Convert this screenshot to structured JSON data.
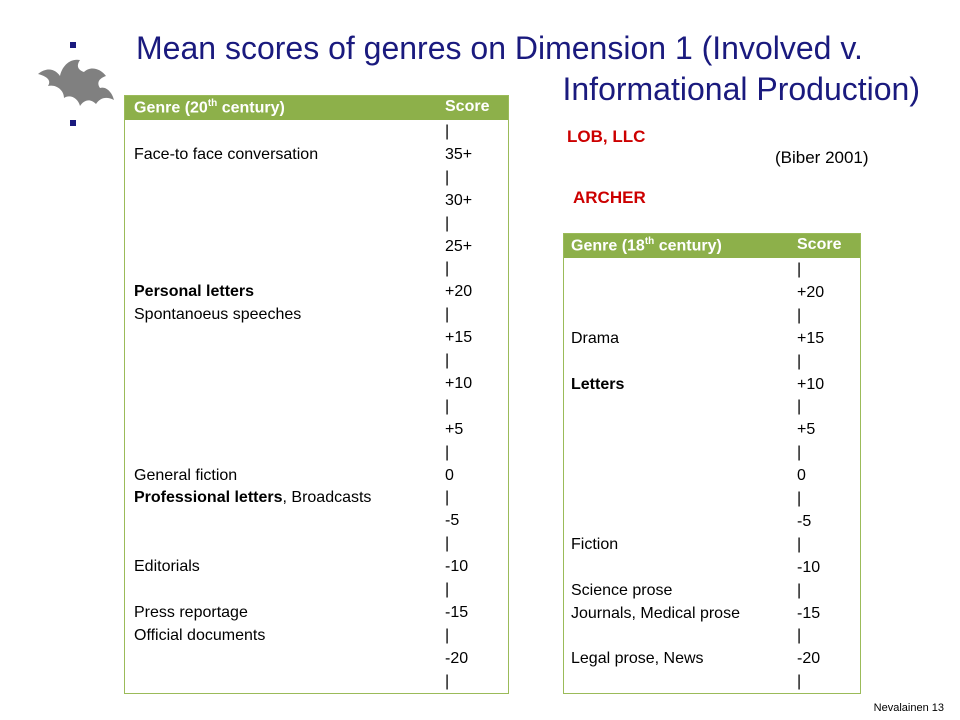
{
  "title": {
    "line1": "Mean scores of genres on Dimension 1 (Involved v.",
    "line2": "Informational Production)"
  },
  "labels": {
    "lob": "LOB, LLC",
    "archer": "ARCHER",
    "citation": "(Biber 2001)"
  },
  "table20": {
    "header_genre": "Genre (20",
    "header_sup": "th",
    "header_genre_end": " century)",
    "header_score": "Score",
    "rows": [
      {
        "genre": "",
        "score": "|"
      },
      {
        "genre": "Face-to face conversation",
        "score": "35+"
      },
      {
        "genre": "",
        "score": "|"
      },
      {
        "genre": "",
        "score": "30+"
      },
      {
        "genre": "",
        "score": "|"
      },
      {
        "genre": "",
        "score": "25+"
      },
      {
        "genre": "",
        "score": "|"
      },
      {
        "genre": "Personal letters",
        "bold": true,
        "score": "+20"
      },
      {
        "genre": "Spontanoeus speeches",
        "score": "|"
      },
      {
        "genre": "",
        "score": "+15"
      },
      {
        "genre": "",
        "score": "|"
      },
      {
        "genre": "",
        "score": "+10"
      },
      {
        "genre": "",
        "score": "|"
      },
      {
        "genre": "",
        "score": "+5"
      },
      {
        "genre": "",
        "score": "|"
      },
      {
        "genre": "General fiction",
        "score": "0"
      },
      {
        "genre": "Professional letters",
        "bold": true,
        "suffix": ", Broadcasts",
        "score": "|"
      },
      {
        "genre": "",
        "score": "-5"
      },
      {
        "genre": "",
        "score": "|"
      },
      {
        "genre": "Editorials",
        "score": "-10"
      },
      {
        "genre": "",
        "score": "|"
      },
      {
        "genre": "Press reportage",
        "score": "-15"
      },
      {
        "genre": "Official documents",
        "score": "|"
      },
      {
        "genre": "",
        "score": "-20"
      },
      {
        "genre": "",
        "score": "|"
      }
    ]
  },
  "table18": {
    "header_genre": "Genre (18",
    "header_sup": "th",
    "header_genre_end": " century)",
    "header_score": "Score",
    "rows": [
      {
        "genre": "",
        "score": "|"
      },
      {
        "genre": "",
        "score": "+20"
      },
      {
        "genre": "",
        "score": "|"
      },
      {
        "genre": "Drama",
        "score": "+15"
      },
      {
        "genre": "",
        "score": "|"
      },
      {
        "genre": "Letters",
        "bold": true,
        "score": "+10"
      },
      {
        "genre": "",
        "score": "|"
      },
      {
        "genre": "",
        "score": "+5"
      },
      {
        "genre": "",
        "score": "|"
      },
      {
        "genre": "",
        "score": "0"
      },
      {
        "genre": "",
        "score": "|"
      },
      {
        "genre": "",
        "score": "-5"
      },
      {
        "genre": "Fiction",
        "score": "|"
      },
      {
        "genre": "",
        "score": "-10"
      },
      {
        "genre": "Science prose",
        "score": "|"
      },
      {
        "genre": "Journals, Medical prose",
        "score": "-15"
      },
      {
        "genre": "",
        "score": "|"
      },
      {
        "genre": "Legal prose, News",
        "score": "-20"
      },
      {
        "genre": "",
        "score": "|"
      }
    ]
  },
  "footer": "Nevalainen 13"
}
